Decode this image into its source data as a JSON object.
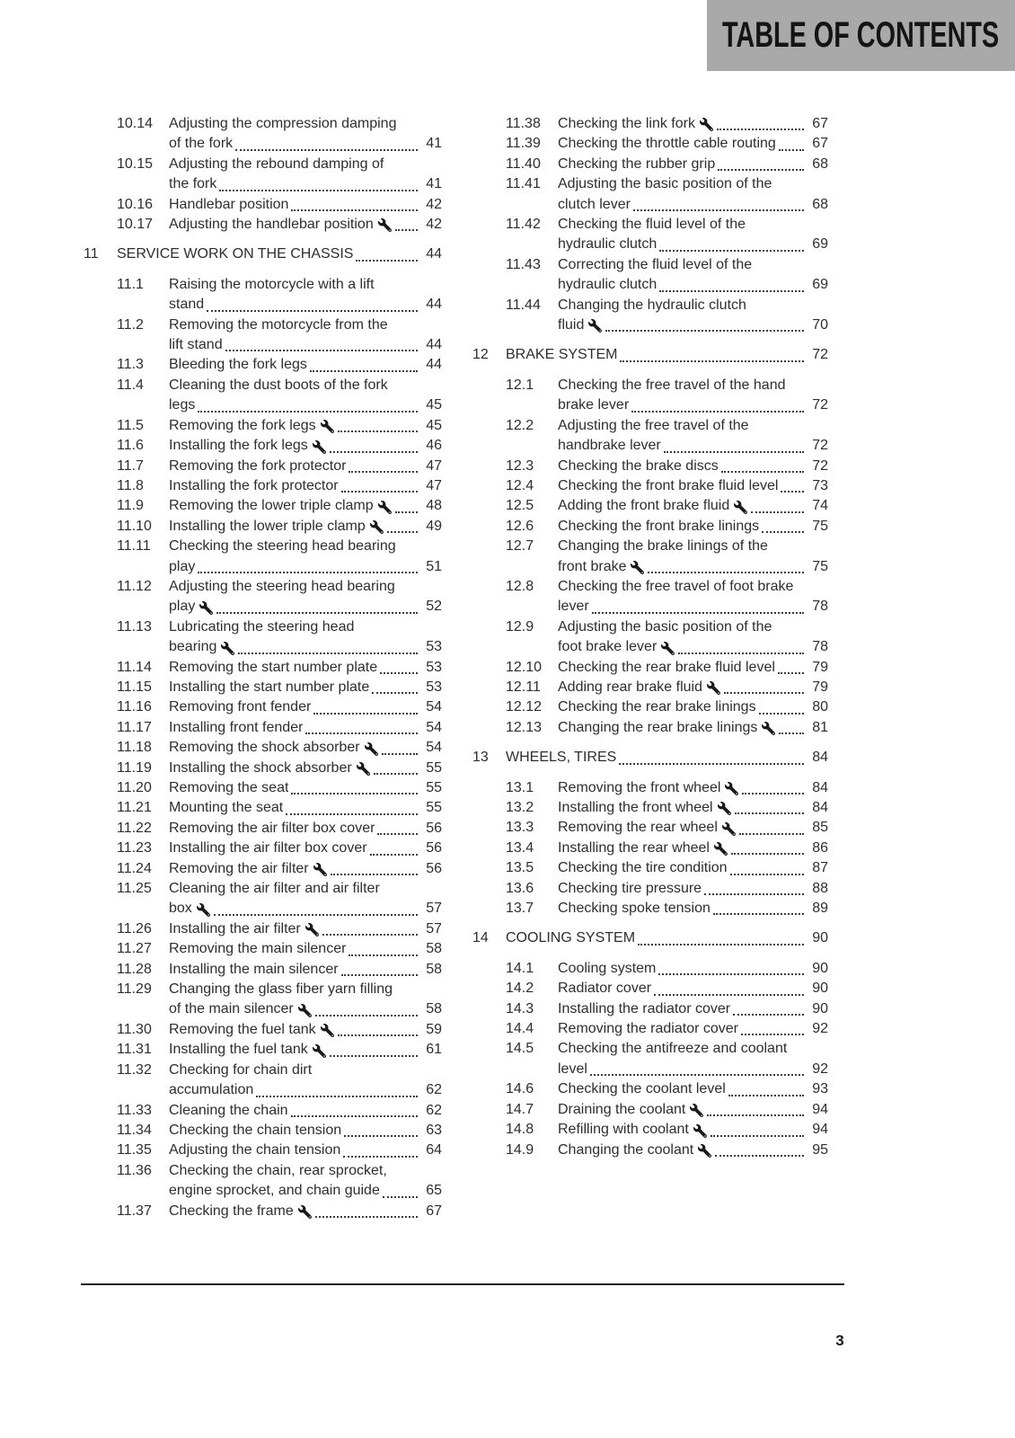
{
  "header": {
    "title": "TABLE OF CONTENTS"
  },
  "footer": {
    "page_number": "3"
  },
  "colors": {
    "header_bg": "#a9a9a9",
    "text": "#2e2e2e"
  },
  "icons": {
    "wrench": "wrench-icon"
  },
  "columns": [
    {
      "blocks": [
        {
          "entries": [
            {
              "num": "10.14",
              "title": "Adjusting the compression damping\nof the fork",
              "page": "41"
            },
            {
              "num": "10.15",
              "title": "Adjusting the rebound damping of\nthe fork",
              "page": "41"
            },
            {
              "num": "10.16",
              "title": "Handlebar position",
              "page": "42"
            },
            {
              "num": "10.17",
              "title": "Adjusting the handlebar position",
              "page": "42",
              "wrench": true
            }
          ]
        },
        {
          "heading": {
            "num": "11",
            "title": "SERVICE WORK ON THE CHASSIS",
            "page": "44"
          },
          "entries": [
            {
              "num": "11.1",
              "title": "Raising the motorcycle with a lift\nstand",
              "page": "44"
            },
            {
              "num": "11.2",
              "title": "Removing the motorcycle from the\nlift stand",
              "page": "44"
            },
            {
              "num": "11.3",
              "title": "Bleeding the fork legs",
              "page": "44"
            },
            {
              "num": "11.4",
              "title": "Cleaning the dust boots of the fork\nlegs",
              "page": "45"
            },
            {
              "num": "11.5",
              "title": "Removing the fork legs",
              "page": "45",
              "wrench": true
            },
            {
              "num": "11.6",
              "title": "Installing the fork legs",
              "page": "46",
              "wrench": true
            },
            {
              "num": "11.7",
              "title": "Removing the fork protector",
              "page": "47"
            },
            {
              "num": "11.8",
              "title": "Installing the fork protector",
              "page": "47"
            },
            {
              "num": "11.9",
              "title": "Removing the lower triple clamp",
              "page": "48",
              "wrench": true
            },
            {
              "num": "11.10",
              "title": "Installing the lower triple clamp",
              "page": "49",
              "wrench": true
            },
            {
              "num": "11.11",
              "title": "Checking the steering head bearing\nplay",
              "page": "51"
            },
            {
              "num": "11.12",
              "title": "Adjusting the steering head bearing\nplay",
              "page": "52",
              "wrench": true
            },
            {
              "num": "11.13",
              "title": "Lubricating the steering head\nbearing",
              "page": "53",
              "wrench": true
            },
            {
              "num": "11.14",
              "title": "Removing the start number plate",
              "page": "53"
            },
            {
              "num": "11.15",
              "title": "Installing the start number plate",
              "page": "53"
            },
            {
              "num": "11.16",
              "title": "Removing front fender",
              "page": "54"
            },
            {
              "num": "11.17",
              "title": "Installing front fender",
              "page": "54"
            },
            {
              "num": "11.18",
              "title": "Removing the shock absorber",
              "page": "54",
              "wrench": true
            },
            {
              "num": "11.19",
              "title": "Installing the shock absorber",
              "page": "55",
              "wrench": true
            },
            {
              "num": "11.20",
              "title": "Removing the seat",
              "page": "55"
            },
            {
              "num": "11.21",
              "title": "Mounting the seat",
              "page": "55"
            },
            {
              "num": "11.22",
              "title": "Removing the air filter box cover",
              "page": "56"
            },
            {
              "num": "11.23",
              "title": "Installing the air filter box cover",
              "page": "56"
            },
            {
              "num": "11.24",
              "title": "Removing the air filter",
              "page": "56",
              "wrench": true
            },
            {
              "num": "11.25",
              "title": "Cleaning the air filter and air filter\nbox",
              "page": "57",
              "wrench": true
            },
            {
              "num": "11.26",
              "title": "Installing the air filter",
              "page": "57",
              "wrench": true
            },
            {
              "num": "11.27",
              "title": "Removing the main silencer",
              "page": "58"
            },
            {
              "num": "11.28",
              "title": "Installing the main silencer",
              "page": "58"
            },
            {
              "num": "11.29",
              "title": "Changing the glass fiber yarn filling\nof the main silencer",
              "page": "58",
              "wrench": true
            },
            {
              "num": "11.30",
              "title": "Removing the fuel tank",
              "page": "59",
              "wrench": true
            },
            {
              "num": "11.31",
              "title": "Installing the fuel tank",
              "page": "61",
              "wrench": true
            },
            {
              "num": "11.32",
              "title": "Checking for chain dirt\naccumulation",
              "page": "62"
            },
            {
              "num": "11.33",
              "title": "Cleaning the chain",
              "page": "62"
            },
            {
              "num": "11.34",
              "title": "Checking the chain tension",
              "page": "63"
            },
            {
              "num": "11.35",
              "title": "Adjusting the chain tension",
              "page": "64"
            },
            {
              "num": "11.36",
              "title": "Checking the chain, rear sprocket,\nengine sprocket, and chain guide",
              "page": "65"
            },
            {
              "num": "11.37",
              "title": "Checking the frame",
              "page": "67",
              "wrench": true
            }
          ]
        }
      ]
    },
    {
      "blocks": [
        {
          "entries": [
            {
              "num": "11.38",
              "title": "Checking the link fork",
              "page": "67",
              "wrench": true
            },
            {
              "num": "11.39",
              "title": "Checking the throttle cable routing",
              "page": "67"
            },
            {
              "num": "11.40",
              "title": "Checking the rubber grip",
              "page": "68"
            },
            {
              "num": "11.41",
              "title": "Adjusting the basic position of the\nclutch lever",
              "page": "68"
            },
            {
              "num": "11.42",
              "title": "Checking the fluid level of the\nhydraulic clutch",
              "page": "69"
            },
            {
              "num": "11.43",
              "title": "Correcting the fluid level of the\nhydraulic clutch",
              "page": "69"
            },
            {
              "num": "11.44",
              "title": "Changing the hydraulic clutch\nfluid",
              "page": "70",
              "wrench": true
            }
          ]
        },
        {
          "heading": {
            "num": "12",
            "title": "BRAKE SYSTEM",
            "page": "72"
          },
          "entries": [
            {
              "num": "12.1",
              "title": "Checking the free travel of the hand\nbrake lever",
              "page": "72"
            },
            {
              "num": "12.2",
              "title": "Adjusting the free travel of the\nhandbrake lever",
              "page": "72"
            },
            {
              "num": "12.3",
              "title": "Checking the brake discs",
              "page": "72"
            },
            {
              "num": "12.4",
              "title": "Checking the front brake fluid level",
              "page": "73"
            },
            {
              "num": "12.5",
              "title": "Adding the front brake fluid",
              "page": "74",
              "wrench": true
            },
            {
              "num": "12.6",
              "title": "Checking the front brake linings",
              "page": "75"
            },
            {
              "num": "12.7",
              "title": "Changing the brake linings of the\nfront brake",
              "page": "75",
              "wrench": true
            },
            {
              "num": "12.8",
              "title": "Checking the free travel of foot brake\nlever",
              "page": "78"
            },
            {
              "num": "12.9",
              "title": "Adjusting the basic position of the\nfoot brake lever",
              "page": "78",
              "wrench": true
            },
            {
              "num": "12.10",
              "title": "Checking the rear brake fluid level",
              "page": "79"
            },
            {
              "num": "12.11",
              "title": "Adding rear brake fluid",
              "page": "79",
              "wrench": true
            },
            {
              "num": "12.12",
              "title": "Checking the rear brake linings",
              "page": "80"
            },
            {
              "num": "12.13",
              "title": "Changing the rear brake linings",
              "page": "81",
              "wrench": true
            }
          ]
        },
        {
          "heading": {
            "num": "13",
            "title": "WHEELS, TIRES",
            "page": "84"
          },
          "entries": [
            {
              "num": "13.1",
              "title": "Removing the front wheel",
              "page": "84",
              "wrench": true
            },
            {
              "num": "13.2",
              "title": "Installing the front wheel",
              "page": "84",
              "wrench": true
            },
            {
              "num": "13.3",
              "title": "Removing the rear wheel",
              "page": "85",
              "wrench": true
            },
            {
              "num": "13.4",
              "title": "Installing the rear wheel",
              "page": "86",
              "wrench": true
            },
            {
              "num": "13.5",
              "title": "Checking the tire condition",
              "page": "87"
            },
            {
              "num": "13.6",
              "title": "Checking tire pressure",
              "page": "88"
            },
            {
              "num": "13.7",
              "title": "Checking spoke tension",
              "page": "89"
            }
          ]
        },
        {
          "heading": {
            "num": "14",
            "title": "COOLING SYSTEM",
            "page": "90"
          },
          "entries": [
            {
              "num": "14.1",
              "title": "Cooling system",
              "page": "90"
            },
            {
              "num": "14.2",
              "title": "Radiator cover",
              "page": "90"
            },
            {
              "num": "14.3",
              "title": "Installing the radiator cover",
              "page": "90"
            },
            {
              "num": "14.4",
              "title": "Removing the radiator cover",
              "page": "92"
            },
            {
              "num": "14.5",
              "title": "Checking the antifreeze and coolant\nlevel",
              "page": "92"
            },
            {
              "num": "14.6",
              "title": "Checking the coolant level",
              "page": "93"
            },
            {
              "num": "14.7",
              "title": "Draining the coolant",
              "page": "94",
              "wrench": true
            },
            {
              "num": "14.8",
              "title": "Refilling with coolant",
              "page": "94",
              "wrench": true
            },
            {
              "num": "14.9",
              "title": "Changing the coolant",
              "page": "95",
              "wrench": true
            }
          ]
        }
      ]
    }
  ]
}
